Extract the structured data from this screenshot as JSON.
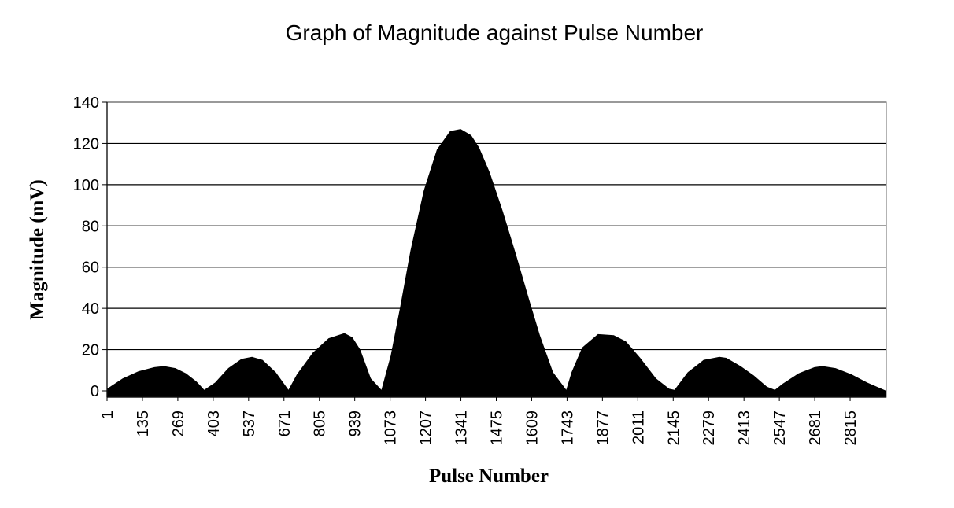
{
  "chart_data": {
    "type": "area",
    "title": "Graph of Magnitude against Pulse Number",
    "xlabel": "Pulse Number",
    "ylabel": "Magnitude (mV)",
    "ylim": [
      0,
      140
    ],
    "yticks": [
      0,
      20,
      40,
      60,
      80,
      100,
      120,
      140
    ],
    "xlim": [
      1,
      2952
    ],
    "xticks": [
      1,
      135,
      269,
      403,
      537,
      671,
      805,
      939,
      1073,
      1207,
      1341,
      1475,
      1609,
      1743,
      1877,
      2011,
      2145,
      2279,
      2413,
      2547,
      2681,
      2815
    ],
    "grid": "horizontal",
    "legend": "none",
    "fill_color": "#000000",
    "series": [
      {
        "values_x": [
          1,
          60,
          120,
          180,
          216,
          260,
          300,
          340,
          369,
          410,
          460,
          510,
          550,
          590,
          640,
          688,
          720,
          780,
          840,
          900,
          930,
          960,
          1000,
          1040,
          1075,
          1110,
          1150,
          1200,
          1250,
          1300,
          1340,
          1380,
          1410,
          1450,
          1500,
          1550,
          1600,
          1640,
          1690,
          1740,
          1760,
          1800,
          1860,
          1920,
          1966,
          2020,
          2080,
          2130,
          2150,
          2200,
          2260,
          2320,
          2346,
          2400,
          2450,
          2500,
          2530,
          2560,
          2620,
          2680,
          2710,
          2760,
          2820,
          2880,
          2952
        ],
        "values_y": [
          1,
          6,
          9.5,
          11.5,
          12,
          11,
          8.5,
          4.5,
          0.5,
          4,
          11,
          15.5,
          16.5,
          15,
          9,
          0.5,
          8,
          18.5,
          25.5,
          28,
          26,
          20,
          6,
          0.5,
          17,
          40,
          68,
          97,
          117,
          126,
          127,
          124,
          118,
          106,
          87,
          66,
          44,
          27,
          9,
          0.5,
          9,
          21,
          27.5,
          27,
          24,
          16,
          6,
          1,
          0.5,
          9,
          15,
          16.5,
          16,
          12,
          7.5,
          2,
          0.5,
          3.5,
          8.5,
          11.5,
          12,
          11,
          8,
          4,
          0
        ]
      }
    ]
  }
}
